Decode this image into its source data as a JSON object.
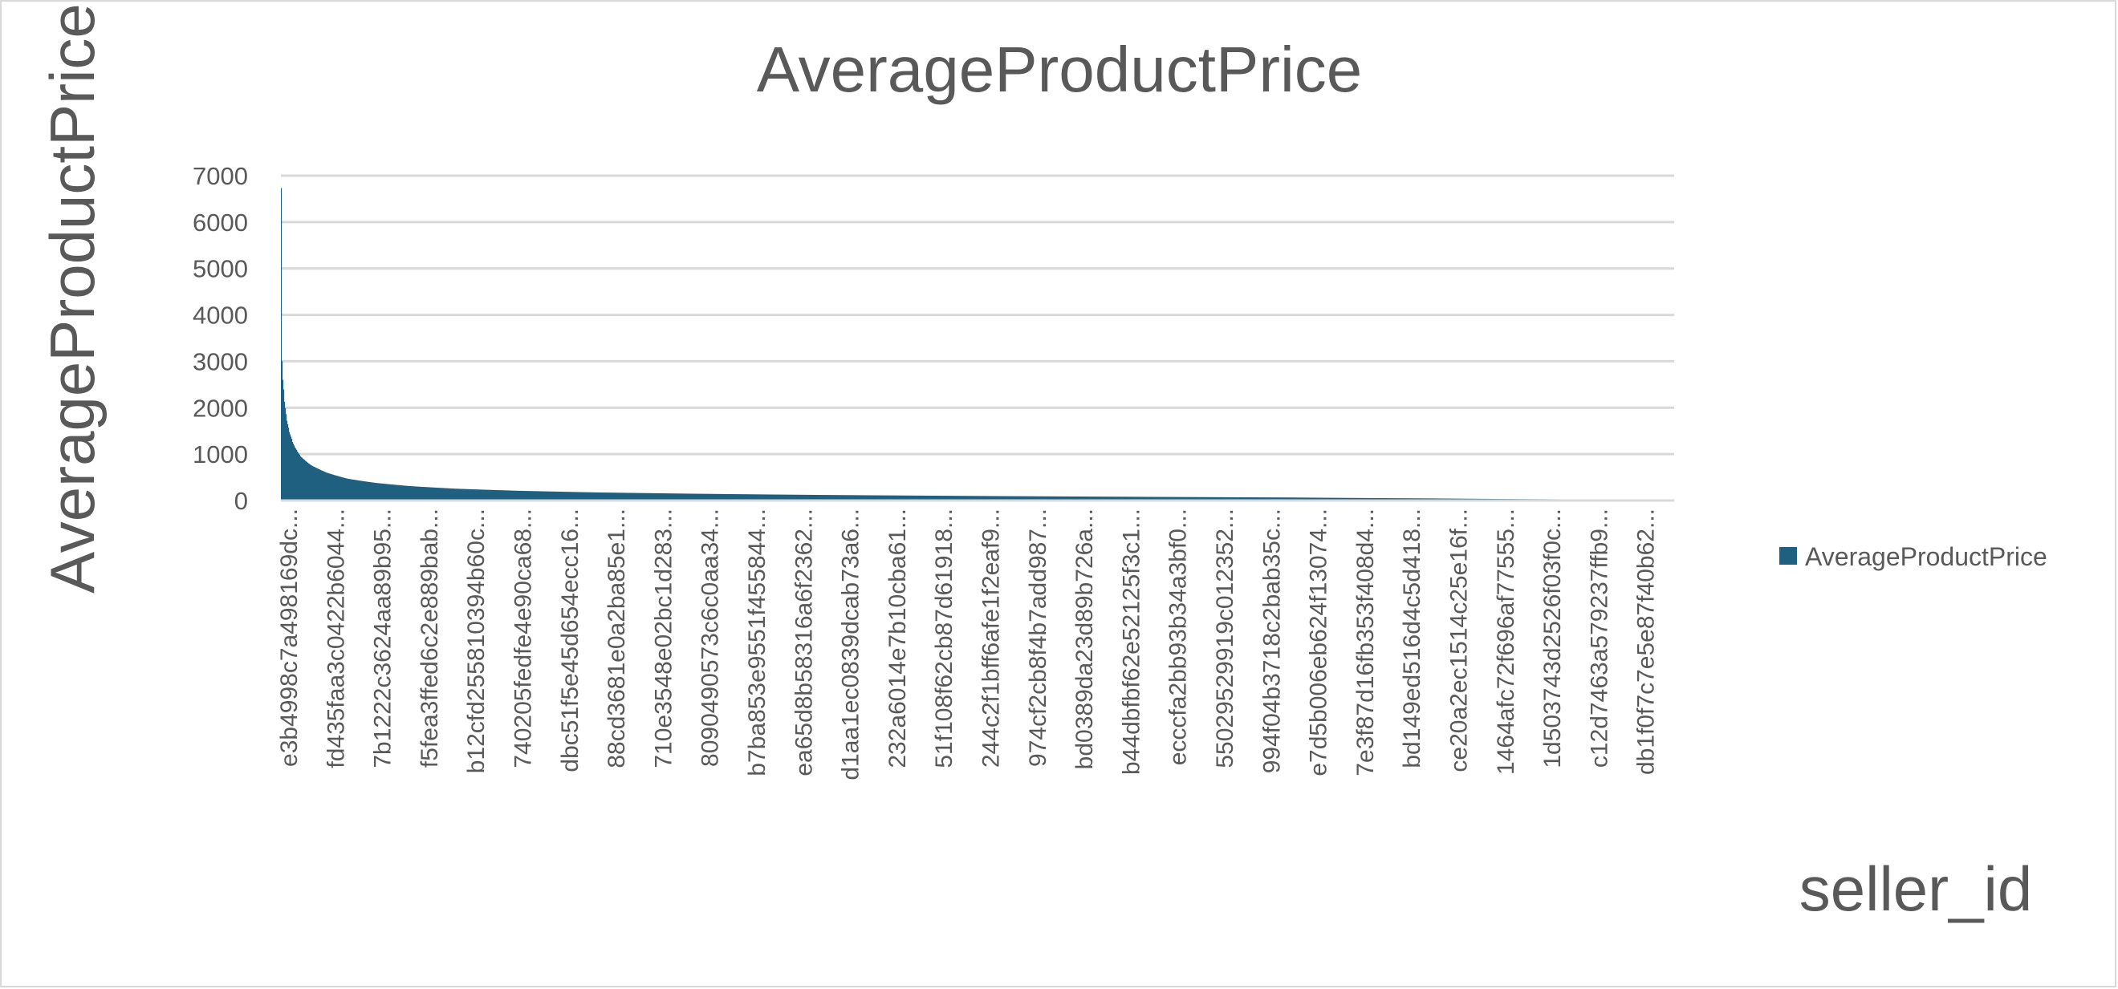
{
  "chart_data": {
    "type": "bar",
    "title": "AverageProductPrice",
    "xlabel": "seller_id",
    "ylabel": "AverageProductPrice",
    "ylim": [
      0,
      7000
    ],
    "yticks": [
      0,
      1000,
      2000,
      3000,
      4000,
      5000,
      6000,
      7000
    ],
    "grid": true,
    "legend": {
      "position": "right",
      "entries": [
        "AverageProductPrice"
      ]
    },
    "series_color": "#1f5f7f",
    "categories": [
      "e3b4998c7a498169dc...",
      "fd435faa3c0422b6044...",
      "7b1222c3624aa89b95...",
      "f5fea3ffed6c2e889bab...",
      "b12cfd255810394b60c...",
      "740205fedfe4e90ca68...",
      "dbc51f5e45d654ecc16...",
      "88cd3681e0a2ba85e1...",
      "710e3548e02bc1d283...",
      "8090490573c6c0aa34...",
      "b7ba853e9551f455844...",
      "ea65d8b58316a6f2362...",
      "d1aa1ec0839dcab73a6...",
      "232a6014e7b10cba61...",
      "51f108f62cb87d61918...",
      "244c2f1bff6afe1f2eaf9...",
      "974cf2cb8f4b7add987...",
      "bd0389da23d89b726a...",
      "b44dbfbf62e52125f3c1...",
      "ecccfa2bb93b34a3bf0...",
      "55029529919c012352...",
      "994f04b3718c2bab35c...",
      "e7d5b006eb624f13074...",
      "7e3f87d16fb353f408d4...",
      "bd149ed516d4c5d418...",
      "ce20a2ec1514c25e16f...",
      "1464afc72f696af77555...",
      "1d503743d2526f03f0c...",
      "c12d7463a579237ffb9...",
      "db1f0f7c7e5e87f40b62..."
    ],
    "distribution": {
      "description_values": "sorted descending average product price per seller",
      "anchor_values": [
        [
          0,
          6735
        ],
        [
          1,
          3700
        ],
        [
          2,
          3000
        ],
        [
          4,
          2600
        ],
        [
          8,
          2200
        ],
        [
          14,
          1800
        ],
        [
          22,
          1500
        ],
        [
          35,
          1200
        ],
        [
          55,
          950
        ],
        [
          85,
          760
        ],
        [
          130,
          600
        ],
        [
          190,
          470
        ],
        [
          270,
          380
        ],
        [
          370,
          310
        ],
        [
          500,
          255
        ],
        [
          680,
          210
        ],
        [
          900,
          175
        ],
        [
          1200,
          145
        ],
        [
          1550,
          120
        ],
        [
          1950,
          100
        ],
        [
          2400,
          82
        ],
        [
          2900,
          65
        ],
        [
          3300,
          45
        ],
        [
          3700,
          25
        ],
        [
          4000,
          8
        ]
      ],
      "count": 4000
    }
  }
}
